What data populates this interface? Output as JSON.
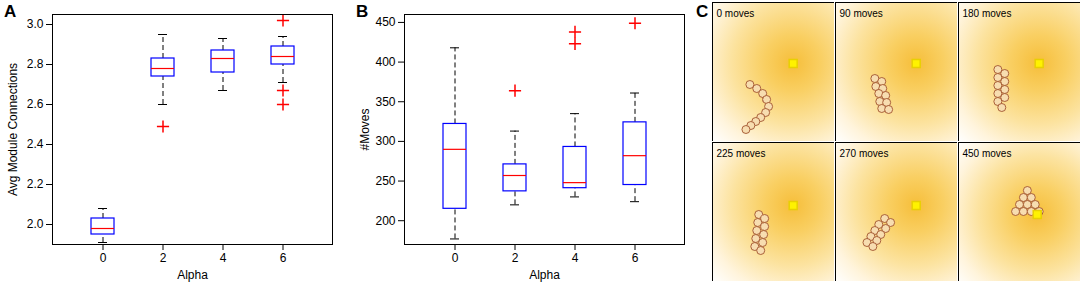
{
  "chart_data": [
    {
      "panel": "A",
      "type": "box",
      "x_label": "Alpha",
      "y_label": "Avg Module Connections",
      "categories": [
        0,
        2,
        4,
        6
      ],
      "color": "#0000ff",
      "boxes": [
        {
          "whisker_low": 1.91,
          "q1": 1.95,
          "median": 1.98,
          "q3": 2.03,
          "whisker_high": 2.08,
          "outliers": []
        },
        {
          "whisker_low": 2.6,
          "q1": 2.74,
          "median": 2.78,
          "q3": 2.83,
          "whisker_high": 2.95,
          "outliers": [
            2.49
          ]
        },
        {
          "whisker_low": 2.67,
          "q1": 2.76,
          "median": 2.83,
          "q3": 2.87,
          "whisker_high": 2.93,
          "outliers": []
        },
        {
          "whisker_low": 2.71,
          "q1": 2.8,
          "median": 2.84,
          "q3": 2.89,
          "whisker_high": 2.94,
          "outliers": [
            3.02,
            2.67,
            2.6
          ]
        }
      ],
      "ylim": [
        1.9,
        3.05
      ],
      "yticks": [
        2,
        2.2,
        2.4,
        2.6,
        2.8,
        3
      ]
    },
    {
      "panel": "B",
      "type": "box",
      "x_label": "Alpha",
      "y_label": "#Moves",
      "categories": [
        0,
        2,
        4,
        6
      ],
      "color": "#0000ff",
      "boxes": [
        {
          "whisker_low": 177,
          "q1": 215,
          "median": 290,
          "q3": 322,
          "whisker_high": 418,
          "outliers": []
        },
        {
          "whisker_low": 220,
          "q1": 237,
          "median": 257,
          "q3": 271,
          "whisker_high": 313,
          "outliers": [
            364
          ]
        },
        {
          "whisker_low": 230,
          "q1": 241,
          "median": 248,
          "q3": 293,
          "whisker_high": 335,
          "outliers": [
            423,
            438
          ]
        },
        {
          "whisker_low": 224,
          "q1": 245,
          "median": 282,
          "q3": 324,
          "whisker_high": 361,
          "outliers": [
            449
          ]
        }
      ],
      "ylim": [
        170,
        460
      ],
      "yticks": [
        200,
        250,
        300,
        350,
        400,
        450
      ]
    },
    {
      "panel": "C",
      "type": "scatter",
      "tick_labels": false,
      "xlim": [
        0,
        124
      ],
      "ylim": [
        139,
        0
      ],
      "frames": [
        {
          "label": "0 moves",
          "target": [
            82,
            61
          ],
          "modules": [
            [
              38,
              82
            ],
            [
              45,
              86
            ],
            [
              51,
              91
            ],
            [
              55,
              97
            ],
            [
              57,
              104
            ],
            [
              54,
              110
            ],
            [
              49,
              115
            ],
            [
              44,
              119
            ],
            [
              39,
              123
            ],
            [
              34,
              127
            ]
          ]
        },
        {
          "label": "90 moves",
          "target": [
            82,
            61
          ],
          "modules": [
            [
              40,
              76
            ],
            [
              47,
              79
            ],
            [
              41,
              84
            ],
            [
              48,
              86
            ],
            [
              44,
              91
            ],
            [
              51,
              93
            ],
            [
              45,
              99
            ],
            [
              52,
              100
            ],
            [
              47,
              106
            ],
            [
              54,
              107
            ]
          ]
        },
        {
          "label": "180 moves",
          "target": [
            82,
            61
          ],
          "modules": [
            [
              40,
              67
            ],
            [
              47,
              71
            ],
            [
              40,
              75
            ],
            [
              47,
              79
            ],
            [
              40,
              83
            ],
            [
              47,
              87
            ],
            [
              40,
              91
            ],
            [
              47,
              95
            ],
            [
              40,
              99
            ],
            [
              44,
              105
            ]
          ]
        },
        {
          "label": "225 moves",
          "target": [
            82,
            63
          ],
          "modules": [
            [
              47,
              72
            ],
            [
              53,
              76
            ],
            [
              46,
              80
            ],
            [
              53,
              84
            ],
            [
              45,
              88
            ],
            [
              52,
              92
            ],
            [
              44,
              96
            ],
            [
              51,
              100
            ],
            [
              43,
              104
            ],
            [
              49,
              108
            ]
          ]
        },
        {
          "label": "270 moves",
          "target": [
            82,
            63
          ],
          "modules": [
            [
              50,
              76
            ],
            [
              56,
              80
            ],
            [
              44,
              82
            ],
            [
              51,
              86
            ],
            [
              40,
              88
            ],
            [
              46,
              92
            ],
            [
              36,
              94
            ],
            [
              42,
              98
            ],
            [
              32,
              100
            ],
            [
              38,
              104
            ]
          ]
        },
        {
          "label": "450 moves",
          "target": [
            80,
            72
          ],
          "modules": [
            [
              70,
              48
            ],
            [
              66,
              55
            ],
            [
              74,
              55
            ],
            [
              62,
              62
            ],
            [
              70,
              62
            ],
            [
              78,
              62
            ],
            [
              58,
              69
            ],
            [
              66,
              69
            ],
            [
              74,
              69
            ],
            [
              82,
              69
            ]
          ]
        }
      ]
    }
  ]
}
